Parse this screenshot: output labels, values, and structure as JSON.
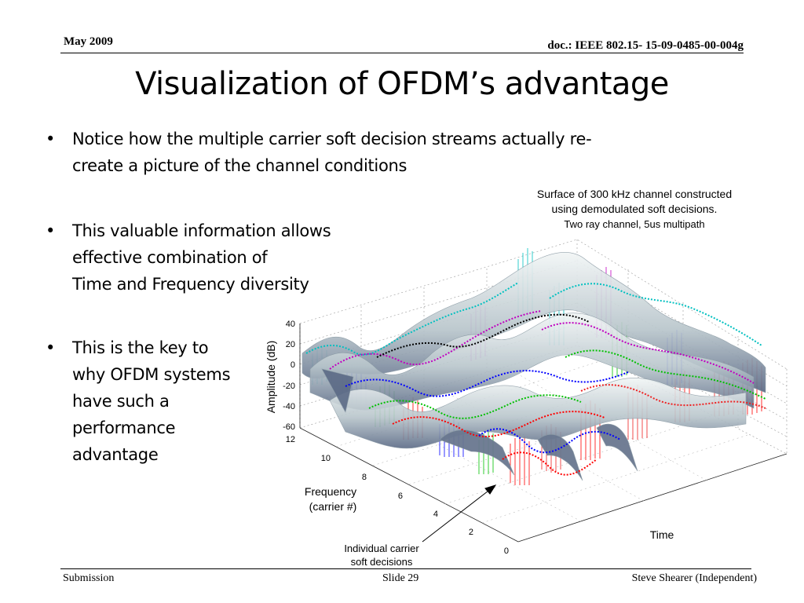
{
  "header": {
    "date": "May 2009",
    "doc_id": "doc.: IEEE 802.15- 15-09-0485-00-004g"
  },
  "slide": {
    "title": "Visualization of OFDM’s advantage",
    "bullets": [
      {
        "lines": [
          "Notice how the multiple carrier soft decision streams actually re-",
          "create a picture of the channel conditions"
        ]
      },
      {
        "lines": [
          "This  valuable information allows",
          "effective combination of",
          "Time and Frequency diversity"
        ]
      },
      {
        "lines": [
          "This is the key to",
          "why OFDM systems",
          "have such a",
          "performance",
          "advantage"
        ]
      }
    ],
    "bullet_symbol": "•"
  },
  "figure": {
    "caption_line1": "Surface of 300 kHz channel constructed",
    "caption_line2": "using demodulated soft decisions.",
    "caption_line3": "Two ray channel, 5us multipath",
    "z_axis_label": "Amplitude (dB)",
    "z_ticks": [
      "40",
      "20",
      "0",
      "-20",
      "-40",
      "-60"
    ],
    "freq_ticks": [
      "12",
      "10",
      "8",
      "6",
      "4",
      "2",
      "0"
    ],
    "freq_label_line1": "Frequency",
    "freq_label_line2": "(carrier #)",
    "time_label": "Time",
    "annotation_line1": "Individual carrier",
    "annotation_line2": "soft decisions",
    "stream_colors": [
      "#00c0c0",
      "#c000c0",
      "#000000",
      "#0000ff",
      "#00c000",
      "#ff0000",
      "#00e0e0",
      "#ff00ff",
      "#3a7a3a",
      "#2222aa",
      "#22dd22",
      "#ee2222"
    ]
  },
  "footer": {
    "left": "Submission",
    "center": "Slide 29",
    "right": "Steve Shearer  (Independent)"
  }
}
